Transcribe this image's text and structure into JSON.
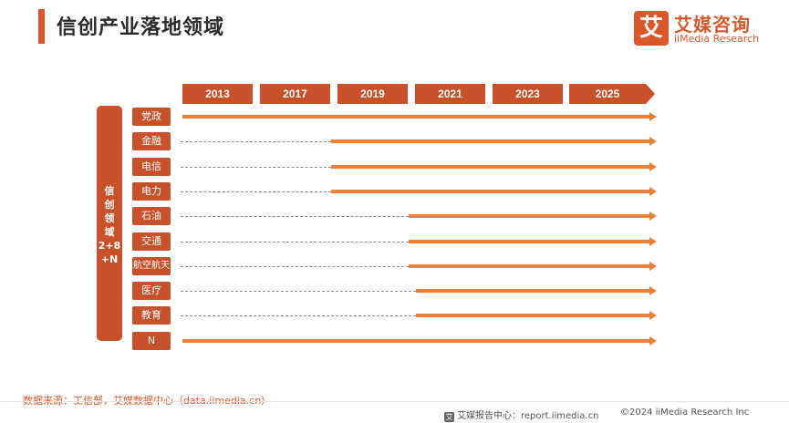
{
  "header": {
    "title": "信创产业落地领域",
    "logo_mark": "艾",
    "logo_cn": "艾媒咨询",
    "logo_en": "iiMedia Research"
  },
  "years": [
    "2013",
    "2017",
    "2019",
    "2021",
    "2023",
    "2025"
  ],
  "side_label": [
    "信",
    "创",
    "领",
    "域",
    "2+8",
    "+N"
  ],
  "rows": [
    {
      "label": "党政",
      "start_year": 2013
    },
    {
      "label": "金融",
      "start_year": 2019
    },
    {
      "label": "电信",
      "start_year": 2019
    },
    {
      "label": "电力",
      "start_year": 2019
    },
    {
      "label": "石油",
      "start_year": 2021
    },
    {
      "label": "交通",
      "start_year": 2021
    },
    {
      "label": "航空航天",
      "start_year": 2021
    },
    {
      "label": "医疗",
      "start_year": 2021
    },
    {
      "label": "教育",
      "start_year": 2021
    },
    {
      "label": "N",
      "start_year": 2013
    }
  ],
  "colors": {
    "accent": "#d9572b",
    "box": "#c8502a",
    "line": "#ec7f35",
    "dash": "#8a8a8a"
  },
  "footer": {
    "source": "数据来源：工信部，艾媒数据中心（data.iimedia.cn）",
    "report_icon": "艾",
    "report": "艾媒报告中心：report.iimedia.cn",
    "copyright": "©2024  iiMedia Research  Inc"
  }
}
